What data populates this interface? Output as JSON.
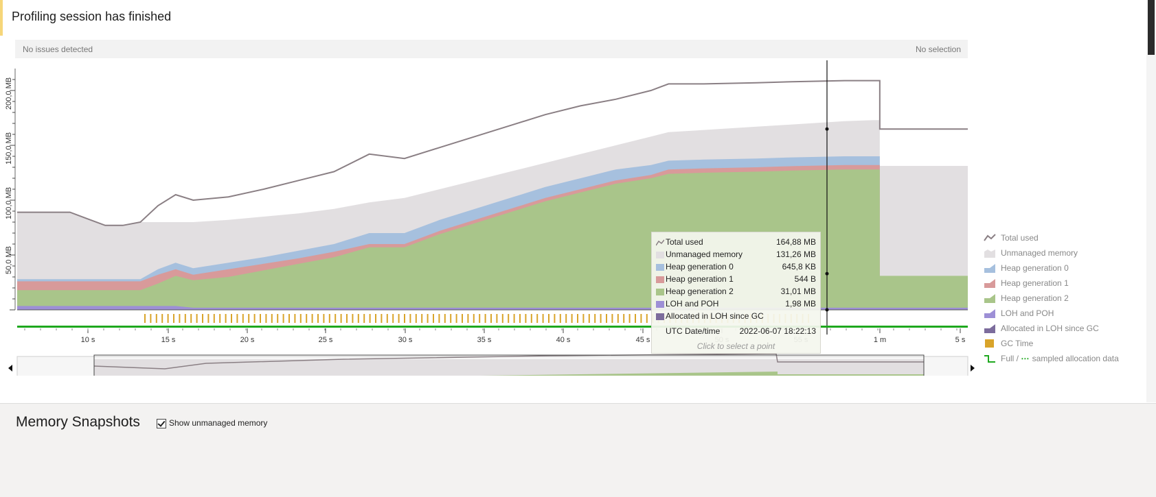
{
  "status": {
    "title": "Profiling session has finished"
  },
  "infobar": {
    "left": "No issues detected",
    "right": "No selection"
  },
  "colors": {
    "unmanaged": "#e2dfe1",
    "heap0": "#a6c0de",
    "heap1": "#d89a9a",
    "heap2": "#a9c58a",
    "loh": "#9d8fd6",
    "allocated_loh": "#7c6c9c",
    "total_line": "#8a7f84",
    "gc_time": "#d9a42a",
    "allocation": "#1ea81e"
  },
  "chart_data": {
    "type": "area",
    "x_unit": "s",
    "x_ticks": [
      "10 s",
      "15 s",
      "20 s",
      "25 s",
      "30 s",
      "35 s",
      "40 s",
      "45 s",
      "50 s",
      "55 s",
      "1 m",
      "5 s"
    ],
    "y_ticks": [
      "50,0 MB",
      "100,0 MB",
      "150,0 MB",
      "200,0 MB"
    ],
    "ylim": [
      0,
      220
    ],
    "x": [
      6,
      9,
      11,
      12,
      13,
      14,
      15,
      16,
      18,
      20,
      22,
      24,
      26,
      28,
      30,
      32,
      34,
      36,
      38,
      40,
      42,
      43,
      45,
      48,
      50,
      53,
      54.6,
      55,
      60
    ],
    "series": [
      {
        "name": "Total used",
        "values": [
          89,
          89,
          77,
          77,
          80,
          95,
          105,
          100,
          103,
          110,
          118,
          126,
          142,
          138,
          148,
          158,
          168,
          178,
          186,
          192,
          200,
          206,
          206,
          207,
          208,
          209,
          209,
          164.88,
          164.88
        ]
      },
      {
        "name": "Unmanaged memory",
        "values": [
          89,
          89,
          77,
          77,
          80,
          80,
          80,
          80,
          82,
          85,
          88,
          92,
          98,
          102,
          110,
          118,
          126,
          134,
          142,
          150,
          158,
          162,
          164,
          167,
          169,
          172,
          173,
          131.26,
          131.26
        ]
      },
      {
        "name": "Heap generation 0",
        "values": [
          28,
          28,
          28,
          28,
          28,
          37,
          43,
          38,
          43,
          48,
          54,
          60,
          70,
          70,
          82,
          92,
          102,
          112,
          120,
          128,
          132,
          136,
          137,
          138,
          139,
          140,
          140,
          0.63,
          0.63
        ]
      },
      {
        "name": "Heap generation 1",
        "values": [
          26,
          26,
          26,
          26,
          26,
          32,
          37,
          32,
          37,
          42,
          47,
          53,
          60,
          60,
          72,
          82,
          92,
          102,
          110,
          118,
          123,
          128,
          129,
          130,
          131,
          132,
          132,
          0.0005,
          0.0005
        ]
      },
      {
        "name": "Heap generation 2",
        "values": [
          18,
          18,
          18,
          18,
          18,
          24,
          31,
          27,
          30,
          36,
          42,
          48,
          57,
          57,
          69,
          79,
          89,
          99,
          107,
          115,
          120,
          124,
          125,
          126,
          127,
          128,
          128,
          31.01,
          31.01
        ]
      },
      {
        "name": "LOH and POH",
        "values": [
          3.5,
          3.5,
          3.5,
          3.5,
          3.5,
          3.5,
          3.5,
          1.98,
          1.98,
          1.98,
          1.98,
          1.98,
          1.98,
          1.98,
          1.98,
          1.98,
          1.98,
          1.98,
          1.98,
          1.98,
          1.98,
          1.98,
          1.98,
          1.98,
          1.98,
          1.98,
          1.98,
          1.98,
          1.98
        ]
      }
    ],
    "cursor": {
      "x_label": "2022-06-07 18:22:13",
      "total_used": "164,88 MB",
      "unmanaged": "131,26 MB"
    }
  },
  "tooltip": {
    "rows": [
      {
        "name": "Total used",
        "value": "164,88 MB"
      },
      {
        "name": "Unmanaged memory",
        "value": "131,26 MB"
      },
      {
        "name": "Heap generation 0",
        "value": "645,8 KB"
      },
      {
        "name": "Heap generation 1",
        "value": "544 B"
      },
      {
        "name": "Heap generation 2",
        "value": "31,01 MB"
      },
      {
        "name": "LOH and POH",
        "value": "1,98 MB"
      },
      {
        "name": "Allocated in LOH since GC",
        "value": ""
      }
    ],
    "date_label": "UTC Date/time",
    "date_value": "2022-06-07 18:22:13",
    "hint": "Click to select a point"
  },
  "legend": {
    "items": [
      "Total used",
      "Unmanaged memory",
      "Heap generation 0",
      "Heap generation 1",
      "Heap generation 2",
      "LOH and POH",
      "Allocated in LOH since GC",
      "GC Time"
    ],
    "alloc_full": "Full / ",
    "alloc_sampled": " sampled allocation data"
  },
  "snapshots": {
    "heading": "Memory Snapshots",
    "checkbox_label": "Show unmanaged memory",
    "checkbox_checked": true
  }
}
